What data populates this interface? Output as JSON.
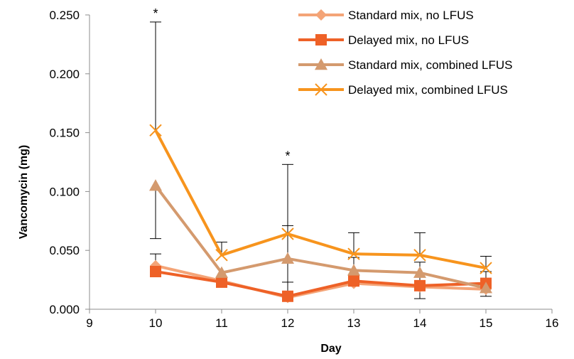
{
  "chart_data": {
    "type": "line",
    "title": "",
    "xlabel": "Day",
    "ylabel": "Vancomycin (mg)",
    "xlim": [
      9,
      16
    ],
    "ylim": [
      0,
      0.25
    ],
    "x_ticks": [
      "9",
      "10",
      "11",
      "12",
      "13",
      "14",
      "15",
      "16"
    ],
    "y_ticks": [
      "0.000",
      "0.050",
      "0.100",
      "0.150",
      "0.200",
      "0.250"
    ],
    "grid": false,
    "legend_position": "top-right",
    "x": [
      10,
      11,
      12,
      13,
      14,
      15
    ],
    "series": [
      {
        "name": "Standard mix, no LFUS",
        "marker": "diamond",
        "color": "#F4A477",
        "values": [
          0.037,
          0.024,
          0.01,
          0.022,
          0.019,
          0.017
        ]
      },
      {
        "name": "Delayed mix, no LFUS",
        "marker": "square",
        "color": "#EE6127",
        "values": [
          0.032,
          0.023,
          0.011,
          0.024,
          0.02,
          0.022
        ],
        "error_up": [
          0.015,
          0.0,
          0.06,
          0.02,
          0.02,
          0.01
        ]
      },
      {
        "name": "Standard mix, combined LFUS",
        "marker": "triangle",
        "color": "#D49A6E",
        "values": [
          0.105,
          0.031,
          0.043,
          0.033,
          0.031,
          0.018
        ],
        "error_down": [
          0.045,
          0.007,
          0.02,
          0.0,
          0.022,
          0.007
        ]
      },
      {
        "name": "Delayed mix, combined LFUS",
        "marker": "x",
        "color": "#F7941D",
        "values": [
          0.152,
          0.046,
          0.064,
          0.047,
          0.046,
          0.035
        ],
        "error_up": [
          0.092,
          0.011,
          0.059,
          0.018,
          0.019,
          0.01
        ]
      }
    ],
    "annotations": [
      {
        "text": "*",
        "x": 10,
        "y": 0.244
      },
      {
        "text": "*",
        "x": 12,
        "y": 0.123
      }
    ]
  }
}
